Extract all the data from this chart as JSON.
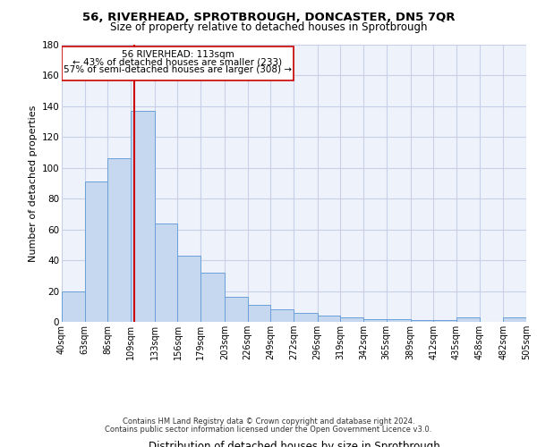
{
  "title1": "56, RIVERHEAD, SPROTBROUGH, DONCASTER, DN5 7QR",
  "title2": "Size of property relative to detached houses in Sprotbrough",
  "xlabel": "Distribution of detached houses by size in Sprotbrough",
  "ylabel": "Number of detached properties",
  "footnote1": "Contains HM Land Registry data © Crown copyright and database right 2024.",
  "footnote2": "Contains public sector information licensed under the Open Government Licence v3.0.",
  "annotation_line1": "56 RIVERHEAD: 113sqm",
  "annotation_line2": "← 43% of detached houses are smaller (233)",
  "annotation_line3": "57% of semi-detached houses are larger (308) →",
  "bar_color": "#c5d8f0",
  "bar_edge_color": "#6a9fd8",
  "vline_color": "#cc0000",
  "vline_x": 113,
  "bin_edges": [
    40,
    63,
    86,
    109,
    133,
    156,
    179,
    203,
    226,
    249,
    272,
    296,
    319,
    342,
    365,
    389,
    412,
    435,
    458,
    482,
    505
  ],
  "bar_heights": [
    20,
    91,
    106,
    137,
    64,
    43,
    32,
    16,
    11,
    8,
    6,
    4,
    3,
    2,
    2,
    1,
    1,
    3,
    0,
    3
  ],
  "ylim": [
    0,
    180
  ],
  "yticks": [
    0,
    20,
    40,
    60,
    80,
    100,
    120,
    140,
    160,
    180
  ],
  "bg_color": "#eef2fb",
  "grid_color": "#c8cfe8"
}
